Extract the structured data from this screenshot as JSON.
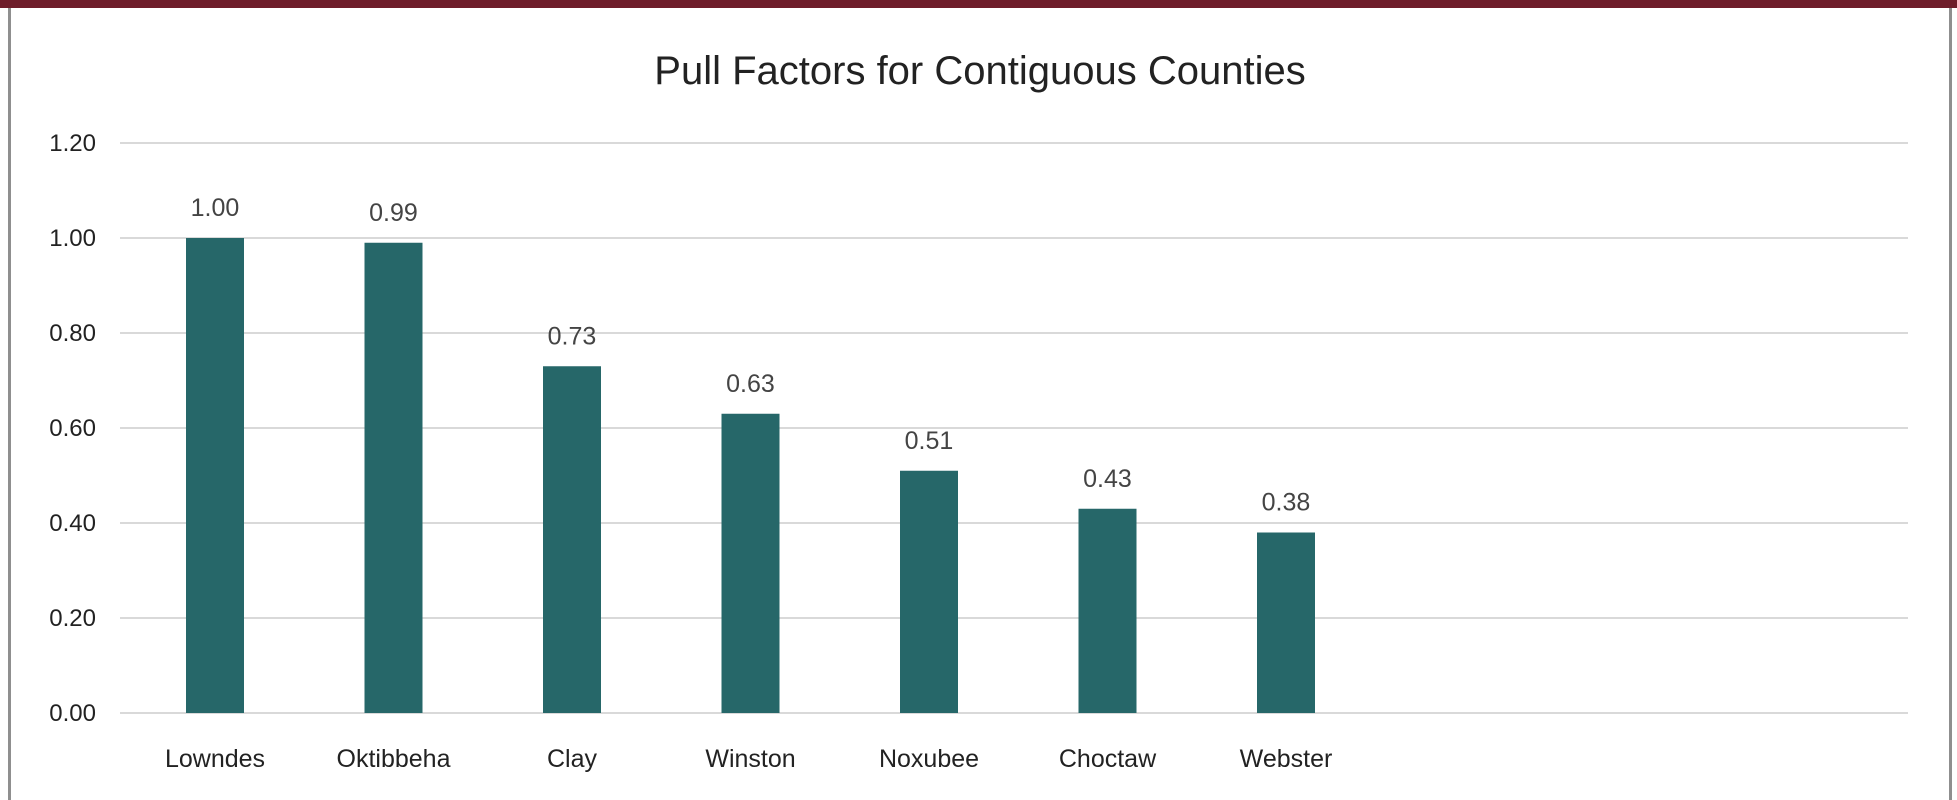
{
  "colors": {
    "frame_top": "#6e1d2a",
    "frame_side": "#8f8f8f",
    "bar": "#266769",
    "gridline": "#d9d9d9",
    "text": "#222222"
  },
  "chart_data": {
    "type": "bar",
    "title": "Pull Factors for Contiguous Counties",
    "xlabel": "",
    "ylabel": "",
    "categories": [
      "Lowndes",
      "Oktibbeha",
      "Clay",
      "Winston",
      "Noxubee",
      "Choctaw",
      "Webster"
    ],
    "values": [
      1.0,
      0.99,
      0.73,
      0.63,
      0.51,
      0.43,
      0.38
    ],
    "data_labels": [
      "1.00",
      "0.99",
      "0.73",
      "0.63",
      "0.51",
      "0.43",
      "0.38"
    ],
    "ylim": [
      0,
      1.2
    ],
    "yticks": [
      "0.00",
      "0.20",
      "0.40",
      "0.60",
      "0.80",
      "1.00",
      "1.20"
    ],
    "grid": true,
    "legend": "none"
  }
}
